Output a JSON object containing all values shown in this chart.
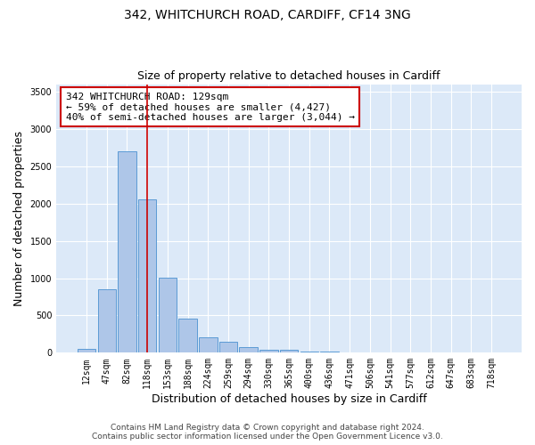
{
  "title_line1": "342, WHITCHURCH ROAD, CARDIFF, CF14 3NG",
  "title_line2": "Size of property relative to detached houses in Cardiff",
  "xlabel": "Distribution of detached houses by size in Cardiff",
  "ylabel": "Number of detached properties",
  "categories": [
    "12sqm",
    "47sqm",
    "82sqm",
    "118sqm",
    "153sqm",
    "188sqm",
    "224sqm",
    "259sqm",
    "294sqm",
    "330sqm",
    "365sqm",
    "400sqm",
    "436sqm",
    "471sqm",
    "506sqm",
    "541sqm",
    "577sqm",
    "612sqm",
    "647sqm",
    "683sqm",
    "718sqm"
  ],
  "values": [
    55,
    850,
    2700,
    2050,
    1010,
    455,
    205,
    145,
    70,
    45,
    35,
    20,
    12,
    8,
    5,
    4,
    4,
    3,
    2,
    2,
    2
  ],
  "bar_color": "#aec6e8",
  "bar_edge_color": "#5b9bd5",
  "vline_x_index": 3,
  "vline_color": "#cc0000",
  "annotation_line1": "342 WHITCHURCH ROAD: 129sqm",
  "annotation_line2": "← 59% of detached houses are smaller (4,427)",
  "annotation_line3": "40% of semi-detached houses are larger (3,044) →",
  "annotation_box_edge": "#cc0000",
  "ylim": [
    0,
    3600
  ],
  "yticks": [
    0,
    500,
    1000,
    1500,
    2000,
    2500,
    3000,
    3500
  ],
  "bg_color": "#dce9f8",
  "footer_line1": "Contains HM Land Registry data © Crown copyright and database right 2024.",
  "footer_line2": "Contains public sector information licensed under the Open Government Licence v3.0.",
  "title_fontsize": 10,
  "subtitle_fontsize": 9,
  "axis_label_fontsize": 9,
  "tick_fontsize": 7,
  "annotation_fontsize": 8,
  "footer_fontsize": 6.5
}
